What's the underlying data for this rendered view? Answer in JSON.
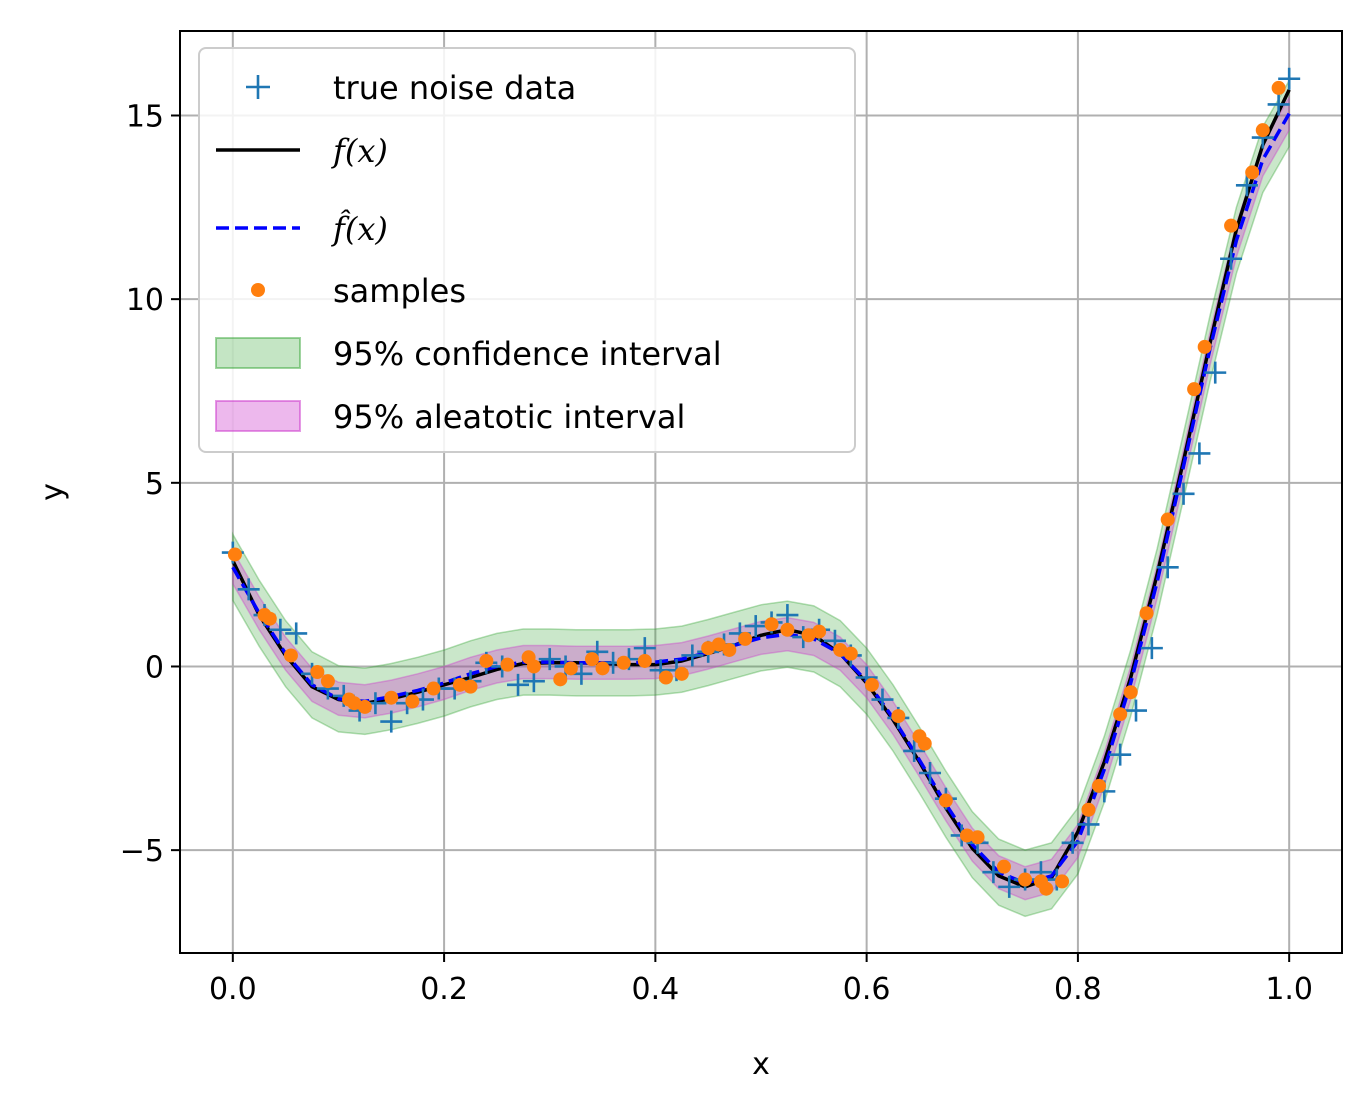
{
  "chart_data": {
    "type": "line",
    "xlabel": "x",
    "ylabel": "y",
    "xlim": [
      -0.05,
      1.05
    ],
    "ylim": [
      -7.8,
      17.3
    ],
    "xticks": [
      0.0,
      0.2,
      0.4,
      0.6,
      0.8,
      1.0
    ],
    "xtick_labels": [
      "0.0",
      "0.2",
      "0.4",
      "0.6",
      "0.8",
      "1.0"
    ],
    "yticks": [
      -5,
      0,
      5,
      10,
      15
    ],
    "ytick_labels": [
      "−5",
      "0",
      "5",
      "10",
      "15"
    ],
    "grid": true,
    "legend_position": "upper-left",
    "curve_x": [
      0.0,
      0.025,
      0.05,
      0.075,
      0.1,
      0.125,
      0.15,
      0.175,
      0.2,
      0.225,
      0.25,
      0.275,
      0.3,
      0.325,
      0.35,
      0.375,
      0.4,
      0.425,
      0.45,
      0.475,
      0.5,
      0.525,
      0.55,
      0.575,
      0.6,
      0.625,
      0.65,
      0.675,
      0.7,
      0.725,
      0.75,
      0.775,
      0.8,
      0.825,
      0.85,
      0.875,
      0.9,
      0.925,
      0.95,
      0.975,
      1.0
    ],
    "series": [
      {
        "name": "true noise data",
        "kind": "marker-plus",
        "color": "#1f77b4",
        "x": [
          0.0,
          0.015,
          0.03,
          0.045,
          0.06,
          0.075,
          0.09,
          0.105,
          0.12,
          0.135,
          0.15,
          0.165,
          0.18,
          0.195,
          0.21,
          0.225,
          0.24,
          0.255,
          0.27,
          0.285,
          0.3,
          0.315,
          0.33,
          0.345,
          0.36,
          0.375,
          0.39,
          0.405,
          0.42,
          0.435,
          0.45,
          0.465,
          0.48,
          0.495,
          0.51,
          0.525,
          0.54,
          0.555,
          0.57,
          0.585,
          0.6,
          0.615,
          0.63,
          0.645,
          0.66,
          0.675,
          0.69,
          0.705,
          0.72,
          0.735,
          0.75,
          0.765,
          0.78,
          0.795,
          0.81,
          0.825,
          0.84,
          0.855,
          0.87,
          0.885,
          0.9,
          0.915,
          0.93,
          0.945,
          0.96,
          0.975,
          0.99,
          1.0
        ],
        "y": [
          3.1,
          2.1,
          1.4,
          1.0,
          0.9,
          -0.2,
          -0.6,
          -0.8,
          -1.2,
          -1.0,
          -1.5,
          -1.0,
          -0.9,
          -0.6,
          -0.6,
          -0.4,
          0.1,
          0.0,
          -0.5,
          -0.4,
          0.2,
          0.0,
          -0.2,
          0.4,
          0.1,
          0.2,
          0.5,
          -0.1,
          -0.1,
          0.3,
          0.4,
          0.6,
          0.9,
          1.1,
          1.2,
          1.4,
          0.8,
          1.0,
          0.7,
          0.3,
          -0.3,
          -0.9,
          -1.4,
          -2.3,
          -2.9,
          -3.6,
          -4.6,
          -4.8,
          -5.6,
          -6.0,
          -5.8,
          -5.6,
          -5.8,
          -4.8,
          -4.3,
          -3.4,
          -2.4,
          -1.2,
          0.5,
          2.7,
          4.7,
          5.8,
          8.0,
          11.1,
          13.1,
          14.4,
          15.3,
          16.0
        ]
      },
      {
        "name": "f(x)",
        "kind": "line",
        "color": "#000000",
        "y": [
          2.88,
          1.4,
          0.3,
          -0.55,
          -0.9,
          -1.0,
          -0.88,
          -0.7,
          -0.5,
          -0.3,
          -0.08,
          0.08,
          0.1,
          0.1,
          0.08,
          0.05,
          0.05,
          0.15,
          0.35,
          0.58,
          0.85,
          1.0,
          0.85,
          0.35,
          -0.45,
          -1.45,
          -2.6,
          -3.85,
          -4.95,
          -5.7,
          -6.0,
          -5.75,
          -4.5,
          -2.6,
          -0.3,
          2.5,
          5.6,
          8.8,
          11.9,
          14.2,
          15.7
        ]
      },
      {
        "name": "f̂(x)",
        "kind": "dashed-line",
        "color": "#0000ff",
        "y": [
          2.7,
          1.45,
          0.35,
          -0.5,
          -0.88,
          -0.95,
          -0.82,
          -0.65,
          -0.45,
          -0.2,
          0.0,
          0.12,
          0.12,
          0.1,
          0.1,
          0.1,
          0.12,
          0.2,
          0.38,
          0.58,
          0.78,
          0.88,
          0.75,
          0.35,
          -0.4,
          -1.4,
          -2.55,
          -3.75,
          -4.85,
          -5.6,
          -5.9,
          -5.7,
          -4.75,
          -2.8,
          -0.45,
          2.3,
          5.45,
          8.65,
          11.6,
          13.8,
          15.05
        ]
      },
      {
        "name": "samples",
        "kind": "marker-dot",
        "color": "#ff7f0e",
        "x": [
          0.002,
          0.03,
          0.035,
          0.055,
          0.08,
          0.09,
          0.11,
          0.115,
          0.125,
          0.15,
          0.17,
          0.19,
          0.215,
          0.225,
          0.24,
          0.26,
          0.28,
          0.285,
          0.31,
          0.32,
          0.34,
          0.35,
          0.37,
          0.39,
          0.41,
          0.425,
          0.45,
          0.46,
          0.47,
          0.485,
          0.51,
          0.525,
          0.545,
          0.555,
          0.575,
          0.585,
          0.605,
          0.63,
          0.65,
          0.655,
          0.675,
          0.695,
          0.705,
          0.73,
          0.75,
          0.765,
          0.77,
          0.785,
          0.81,
          0.82,
          0.84,
          0.85,
          0.865,
          0.885,
          0.91,
          0.92,
          0.945,
          0.965,
          0.975,
          0.99
        ],
        "y": [
          3.05,
          1.4,
          1.3,
          0.3,
          -0.15,
          -0.4,
          -0.9,
          -1.0,
          -1.1,
          -0.85,
          -0.95,
          -0.6,
          -0.5,
          -0.55,
          0.15,
          0.05,
          0.25,
          0.0,
          -0.35,
          -0.05,
          0.2,
          -0.05,
          0.1,
          0.15,
          -0.3,
          -0.2,
          0.5,
          0.6,
          0.45,
          0.75,
          1.15,
          1.0,
          0.85,
          0.95,
          0.45,
          0.35,
          -0.5,
          -1.35,
          -1.9,
          -2.1,
          -3.65,
          -4.6,
          -4.65,
          -5.45,
          -5.8,
          -5.85,
          -6.05,
          -5.85,
          -3.9,
          -3.25,
          -1.3,
          -0.7,
          1.45,
          4.0,
          7.55,
          8.7,
          12.0,
          13.45,
          14.6,
          15.75
        ]
      },
      {
        "name": "95% confidence interval",
        "kind": "band",
        "color": "#2ca02c",
        "half_width": 0.9
      },
      {
        "name": "95% aleatotic interval",
        "kind": "band",
        "color": "#cc33cc",
        "half_width": 0.45
      }
    ]
  }
}
